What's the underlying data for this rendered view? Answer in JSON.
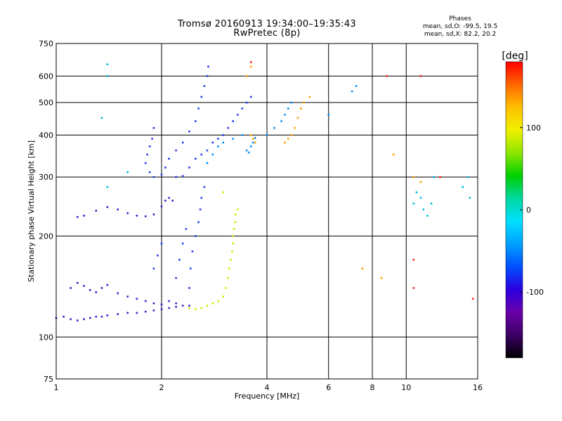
{
  "header": {
    "title_line1": "Tromsø 20160913 19:34:00–19:35:43",
    "title_line2": "RwPretec (8p)",
    "phase_title": "Phases",
    "phase_line1": "mean, sd,O: -99.5, 19.5",
    "phase_line2": "mean, sd,X:  82.2, 20.2"
  },
  "chart_data": {
    "type": "scatter",
    "title": "Tromsø 20160913 19:34:00–19:35:43",
    "subtitle": "RwPretec (8p)",
    "xlabel": "Frequency [MHz]",
    "ylabel": "Stationary phase Virtual Height [km]",
    "x_scale": "log",
    "y_scale": "log",
    "xlim": [
      1,
      16
    ],
    "ylim": [
      75,
      750
    ],
    "x_ticks": [
      1,
      2,
      4,
      6,
      8,
      10,
      16
    ],
    "x_tick_labels": [
      "1",
      "2",
      "4",
      "6",
      "8",
      "10",
      "16"
    ],
    "y_ticks": [
      75,
      100,
      200,
      300,
      400,
      500,
      600,
      750
    ],
    "y_tick_labels": [
      "75",
      "100",
      "200",
      "300",
      "400",
      "500",
      "600",
      "750"
    ],
    "grid": true,
    "colorbar": {
      "label": "[deg]",
      "range": [
        -180,
        180
      ],
      "ticks": [
        -100,
        0,
        100
      ],
      "tick_labels": [
        "-100",
        "0",
        "100"
      ],
      "colors": [
        "#000000",
        "#3c0064",
        "#6a00a8",
        "#2b00e0",
        "#0050ff",
        "#00a0ff",
        "#00e0ff",
        "#00d8a0",
        "#00d000",
        "#8ee600",
        "#f0f000",
        "#ffc000",
        "#ff6600",
        "#ff0000"
      ]
    },
    "series": [
      {
        "color": "#4a1ac8",
        "phase": -110,
        "points": [
          [
            1.0,
            114
          ],
          [
            1.05,
            115
          ],
          [
            1.1,
            113
          ],
          [
            1.15,
            112
          ],
          [
            1.2,
            113
          ],
          [
            1.25,
            114
          ],
          [
            1.3,
            115
          ],
          [
            1.35,
            115
          ],
          [
            1.4,
            116
          ],
          [
            1.5,
            117
          ],
          [
            1.6,
            118
          ],
          [
            1.7,
            118
          ],
          [
            1.8,
            119
          ],
          [
            1.9,
            120
          ],
          [
            2.0,
            121
          ],
          [
            2.1,
            122
          ],
          [
            2.2,
            123
          ],
          [
            2.3,
            124
          ],
          [
            2.4,
            124
          ],
          [
            1.1,
            140
          ],
          [
            1.15,
            145
          ],
          [
            1.2,
            142
          ],
          [
            1.25,
            138
          ],
          [
            1.3,
            136
          ],
          [
            1.35,
            140
          ],
          [
            1.4,
            143
          ],
          [
            1.5,
            135
          ],
          [
            1.6,
            132
          ],
          [
            1.7,
            130
          ],
          [
            1.8,
            128
          ],
          [
            1.9,
            126
          ],
          [
            2.0,
            125
          ],
          [
            2.1,
            128
          ],
          [
            2.2,
            126
          ],
          [
            1.15,
            228
          ],
          [
            1.2,
            230
          ],
          [
            1.3,
            238
          ],
          [
            1.4,
            244
          ],
          [
            1.5,
            240
          ],
          [
            1.6,
            234
          ],
          [
            1.7,
            230
          ],
          [
            1.8,
            229
          ],
          [
            1.9,
            232
          ],
          [
            2.0,
            245
          ],
          [
            2.05,
            255
          ],
          [
            2.1,
            260
          ],
          [
            2.15,
            255
          ]
        ]
      },
      {
        "color": "#2a3cf0",
        "phase": -95,
        "points": [
          [
            1.8,
            330
          ],
          [
            1.82,
            350
          ],
          [
            1.85,
            370
          ],
          [
            1.88,
            390
          ],
          [
            1.9,
            420
          ],
          [
            1.85,
            310
          ],
          [
            1.9,
            300
          ],
          [
            2.0,
            305
          ],
          [
            2.05,
            320
          ],
          [
            2.1,
            340
          ],
          [
            2.2,
            360
          ],
          [
            2.3,
            380
          ],
          [
            2.4,
            410
          ],
          [
            2.5,
            440
          ],
          [
            2.55,
            480
          ],
          [
            2.6,
            520
          ],
          [
            2.65,
            560
          ],
          [
            2.7,
            600
          ],
          [
            2.72,
            640
          ],
          [
            2.2,
            300
          ],
          [
            2.3,
            302
          ],
          [
            2.4,
            320
          ],
          [
            2.5,
            340
          ],
          [
            2.6,
            350
          ],
          [
            2.7,
            360
          ],
          [
            2.8,
            380
          ],
          [
            2.9,
            390
          ],
          [
            3.0,
            400
          ],
          [
            3.1,
            420
          ],
          [
            3.2,
            440
          ],
          [
            3.3,
            460
          ],
          [
            3.4,
            480
          ],
          [
            3.5,
            500
          ],
          [
            3.6,
            520
          ],
          [
            2.4,
            140
          ],
          [
            2.42,
            160
          ],
          [
            2.45,
            180
          ],
          [
            2.5,
            200
          ],
          [
            2.55,
            220
          ],
          [
            2.58,
            240
          ],
          [
            2.6,
            260
          ],
          [
            2.65,
            280
          ],
          [
            2.2,
            150
          ],
          [
            2.25,
            170
          ],
          [
            2.3,
            190
          ],
          [
            2.35,
            210
          ],
          [
            1.9,
            160
          ],
          [
            1.95,
            175
          ],
          [
            2.0,
            190
          ]
        ]
      },
      {
        "color": "#0090ff",
        "phase": -70,
        "points": [
          [
            2.7,
            330
          ],
          [
            2.8,
            350
          ],
          [
            2.9,
            370
          ],
          [
            3.0,
            380
          ],
          [
            3.2,
            390
          ],
          [
            3.4,
            400
          ],
          [
            3.5,
            360
          ],
          [
            3.55,
            355
          ],
          [
            3.6,
            370
          ],
          [
            3.65,
            380
          ],
          [
            3.7,
            392
          ],
          [
            4.0,
            400
          ],
          [
            4.2,
            420
          ],
          [
            4.4,
            440
          ],
          [
            4.5,
            460
          ],
          [
            4.6,
            480
          ],
          [
            4.7,
            500
          ],
          [
            6.0,
            460
          ],
          [
            7.0,
            540
          ],
          [
            7.2,
            560
          ]
        ]
      },
      {
        "color": "#c8ee00",
        "phase": 85,
        "points": [
          [
            2.4,
            122
          ],
          [
            2.5,
            121
          ],
          [
            2.6,
            122
          ],
          [
            2.7,
            124
          ],
          [
            2.8,
            126
          ],
          [
            2.9,
            128
          ],
          [
            3.0,
            132
          ],
          [
            3.05,
            140
          ],
          [
            3.1,
            150
          ],
          [
            3.12,
            160
          ],
          [
            3.15,
            170
          ],
          [
            3.18,
            180
          ],
          [
            3.2,
            190
          ],
          [
            3.2,
            200
          ],
          [
            3.22,
            210
          ],
          [
            3.25,
            220
          ],
          [
            3.25,
            232
          ],
          [
            3.3,
            240
          ],
          [
            3.0,
            270
          ]
        ]
      },
      {
        "color": "#ffa000",
        "phase": 130,
        "points": [
          [
            3.6,
            400
          ],
          [
            3.65,
            390
          ],
          [
            3.7,
            380
          ],
          [
            4.5,
            380
          ],
          [
            4.6,
            390
          ],
          [
            4.7,
            400
          ],
          [
            4.8,
            420
          ],
          [
            4.9,
            450
          ],
          [
            5.0,
            480
          ],
          [
            5.1,
            500
          ],
          [
            5.3,
            520
          ],
          [
            3.5,
            600
          ],
          [
            3.6,
            640
          ],
          [
            7.5,
            160
          ],
          [
            8.5,
            150
          ],
          [
            9.2,
            350
          ],
          [
            10.5,
            300
          ],
          [
            11.0,
            290
          ]
        ]
      },
      {
        "color": "#00b8e8",
        "phase": 20,
        "points": [
          [
            10.5,
            250
          ],
          [
            10.7,
            270
          ],
          [
            11.0,
            260
          ],
          [
            11.2,
            240
          ],
          [
            11.5,
            230
          ],
          [
            11.8,
            250
          ],
          [
            12.0,
            300
          ],
          [
            15.0,
            300
          ],
          [
            14.5,
            280
          ],
          [
            15.2,
            260
          ],
          [
            1.4,
            650
          ],
          [
            1.4,
            600
          ],
          [
            1.35,
            450
          ],
          [
            1.4,
            280
          ],
          [
            1.6,
            310
          ]
        ]
      },
      {
        "color": "#ff2020",
        "phase": 170,
        "points": [
          [
            3.6,
            660
          ],
          [
            8.8,
            600
          ],
          [
            11.0,
            600
          ],
          [
            12.5,
            300
          ],
          [
            10.5,
            170
          ],
          [
            15.5,
            130
          ],
          [
            10.5,
            140
          ]
        ]
      }
    ]
  }
}
